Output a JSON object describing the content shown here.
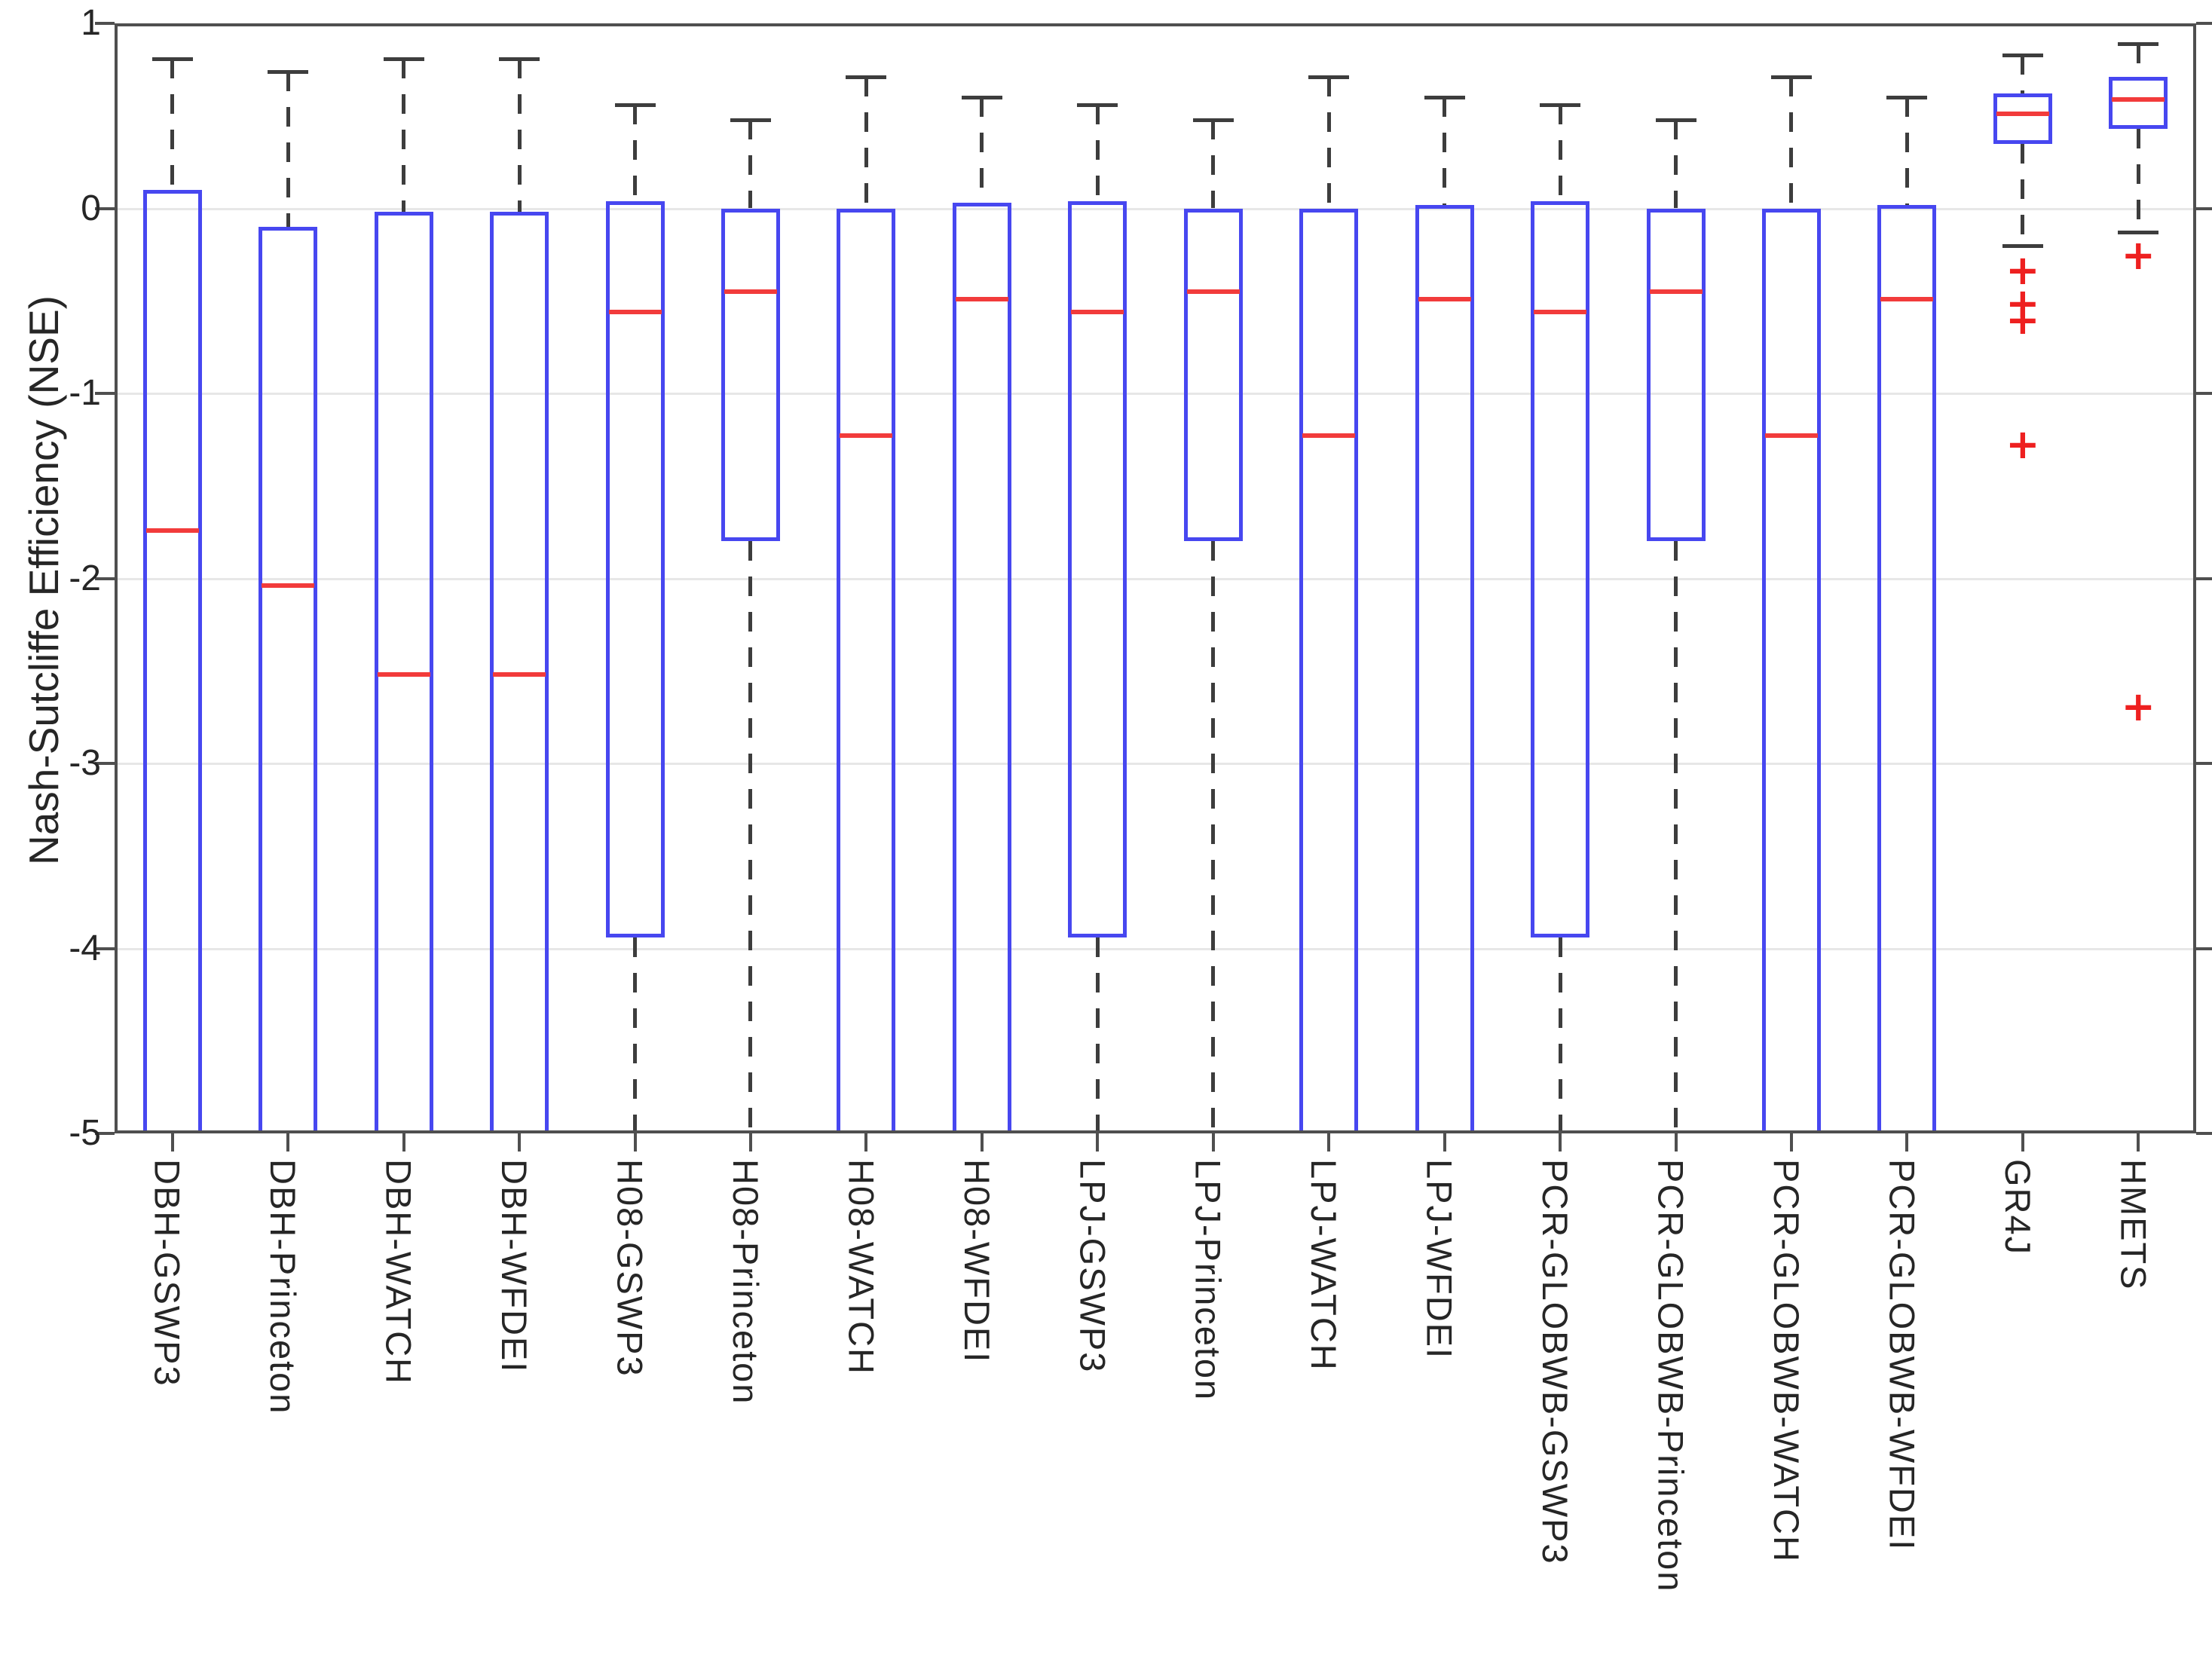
{
  "chart_data": {
    "type": "boxplot",
    "title": "",
    "xlabel": "",
    "ylabel": "Nash-Sutcliffe Efficiency (NSE)",
    "ylim": [
      -5,
      1
    ],
    "y_ticks": [
      1,
      0,
      -1,
      -2,
      -3,
      -4,
      -5
    ],
    "grid": "horizontal light-gray lines at 0,-1,-2,-3,-4; boxes unfilled so gridlines show through",
    "legend": "none",
    "orientation": "vertical",
    "note": "boxes/whiskers marked clipped extend below the -5 axis limit",
    "colors": {
      "box_edge": "#4747f0",
      "median": "#f23b3b",
      "whisker": "#3d3d3d",
      "outlier": "#ee2020",
      "gridline": "#e7e7e7",
      "axis_frame": "#4f4f4f",
      "text": "#262626",
      "background": "#ffffff"
    },
    "categories": [
      "DBH-GSWP3",
      "DBH-Princeton",
      "DBH-WATCH",
      "DBH-WFDEI",
      "H08-GSWP3",
      "H08-Princeton",
      "H08-WATCH",
      "H08-WFDEI",
      "LPJ-GSWP3",
      "LPJ-Princeton",
      "LPJ-WATCH",
      "LPJ-WFDEI",
      "PCR-GLOBWB-GSWP3",
      "PCR-GLOBWB-Princeton",
      "PCR-GLOBWB-WATCH",
      "PCR-GLOBWB-WFDEI",
      "GR4J",
      "HMETS"
    ],
    "series": [
      {
        "label": "DBH-GSWP3",
        "upper_whisker": 0.81,
        "q3": 0.1,
        "median": -1.74,
        "q1": null,
        "lower_whisker": null,
        "box_below_axis": true,
        "whisker_below_axis": false,
        "outliers": []
      },
      {
        "label": "DBH-Princeton",
        "upper_whisker": 0.74,
        "q3": -0.1,
        "median": -2.04,
        "q1": null,
        "lower_whisker": null,
        "box_below_axis": true,
        "whisker_below_axis": false,
        "outliers": []
      },
      {
        "label": "DBH-WATCH",
        "upper_whisker": 0.81,
        "q3": -0.02,
        "median": -2.52,
        "q1": null,
        "lower_whisker": null,
        "box_below_axis": true,
        "whisker_below_axis": false,
        "outliers": []
      },
      {
        "label": "DBH-WFDEI",
        "upper_whisker": 0.81,
        "q3": -0.02,
        "median": -2.52,
        "q1": null,
        "lower_whisker": null,
        "box_below_axis": true,
        "whisker_below_axis": false,
        "outliers": []
      },
      {
        "label": "H08-GSWP3",
        "upper_whisker": 0.56,
        "q3": 0.04,
        "median": -0.56,
        "q1": -3.94,
        "lower_whisker": null,
        "box_below_axis": false,
        "whisker_below_axis": true,
        "outliers": []
      },
      {
        "label": "H08-Princeton",
        "upper_whisker": 0.48,
        "q3": 0.0,
        "median": -0.45,
        "q1": -1.8,
        "lower_whisker": null,
        "box_below_axis": false,
        "whisker_below_axis": true,
        "outliers": []
      },
      {
        "label": "H08-WATCH",
        "upper_whisker": 0.71,
        "q3": 0.0,
        "median": -1.23,
        "q1": null,
        "lower_whisker": null,
        "box_below_axis": true,
        "whisker_below_axis": false,
        "outliers": []
      },
      {
        "label": "H08-WFDEI",
        "upper_whisker": 0.6,
        "q3": 0.03,
        "median": -0.49,
        "q1": null,
        "lower_whisker": null,
        "box_below_axis": true,
        "whisker_below_axis": false,
        "outliers": []
      },
      {
        "label": "LPJ-GSWP3",
        "upper_whisker": 0.56,
        "q3": 0.04,
        "median": -0.56,
        "q1": -3.94,
        "lower_whisker": null,
        "box_below_axis": false,
        "whisker_below_axis": true,
        "outliers": []
      },
      {
        "label": "LPJ-Princeton",
        "upper_whisker": 0.48,
        "q3": 0.0,
        "median": -0.45,
        "q1": -1.8,
        "lower_whisker": null,
        "box_below_axis": false,
        "whisker_below_axis": true,
        "outliers": []
      },
      {
        "label": "LPJ-WATCH",
        "upper_whisker": 0.71,
        "q3": 0.0,
        "median": -1.23,
        "q1": null,
        "lower_whisker": null,
        "box_below_axis": true,
        "whisker_below_axis": false,
        "outliers": []
      },
      {
        "label": "LPJ-WFDEI",
        "upper_whisker": 0.6,
        "q3": 0.02,
        "median": -0.49,
        "q1": null,
        "lower_whisker": null,
        "box_below_axis": true,
        "whisker_below_axis": false,
        "outliers": []
      },
      {
        "label": "PCR-GLOBWB-GSWP3",
        "upper_whisker": 0.56,
        "q3": 0.04,
        "median": -0.56,
        "q1": -3.94,
        "lower_whisker": null,
        "box_below_axis": false,
        "whisker_below_axis": true,
        "outliers": []
      },
      {
        "label": "PCR-GLOBWB-Princeton",
        "upper_whisker": 0.48,
        "q3": 0.0,
        "median": -0.45,
        "q1": -1.8,
        "lower_whisker": null,
        "box_below_axis": false,
        "whisker_below_axis": true,
        "outliers": []
      },
      {
        "label": "PCR-GLOBWB-WATCH",
        "upper_whisker": 0.71,
        "q3": 0.0,
        "median": -1.23,
        "q1": null,
        "lower_whisker": null,
        "box_below_axis": true,
        "whisker_below_axis": false,
        "outliers": []
      },
      {
        "label": "PCR-GLOBWB-WFDEI",
        "upper_whisker": 0.6,
        "q3": 0.02,
        "median": -0.49,
        "q1": null,
        "lower_whisker": null,
        "box_below_axis": true,
        "whisker_below_axis": false,
        "outliers": []
      },
      {
        "label": "GR4J",
        "upper_whisker": 0.83,
        "q3": 0.62,
        "median": 0.51,
        "q1": 0.35,
        "lower_whisker": -0.2,
        "box_below_axis": false,
        "whisker_below_axis": false,
        "outliers": [
          -0.34,
          -0.52,
          -0.61,
          -1.28
        ]
      },
      {
        "label": "HMETS",
        "upper_whisker": 0.89,
        "q3": 0.71,
        "median": 0.59,
        "q1": 0.43,
        "lower_whisker": -0.13,
        "box_below_axis": false,
        "whisker_below_axis": false,
        "outliers": [
          -0.26,
          -2.7
        ]
      }
    ]
  }
}
